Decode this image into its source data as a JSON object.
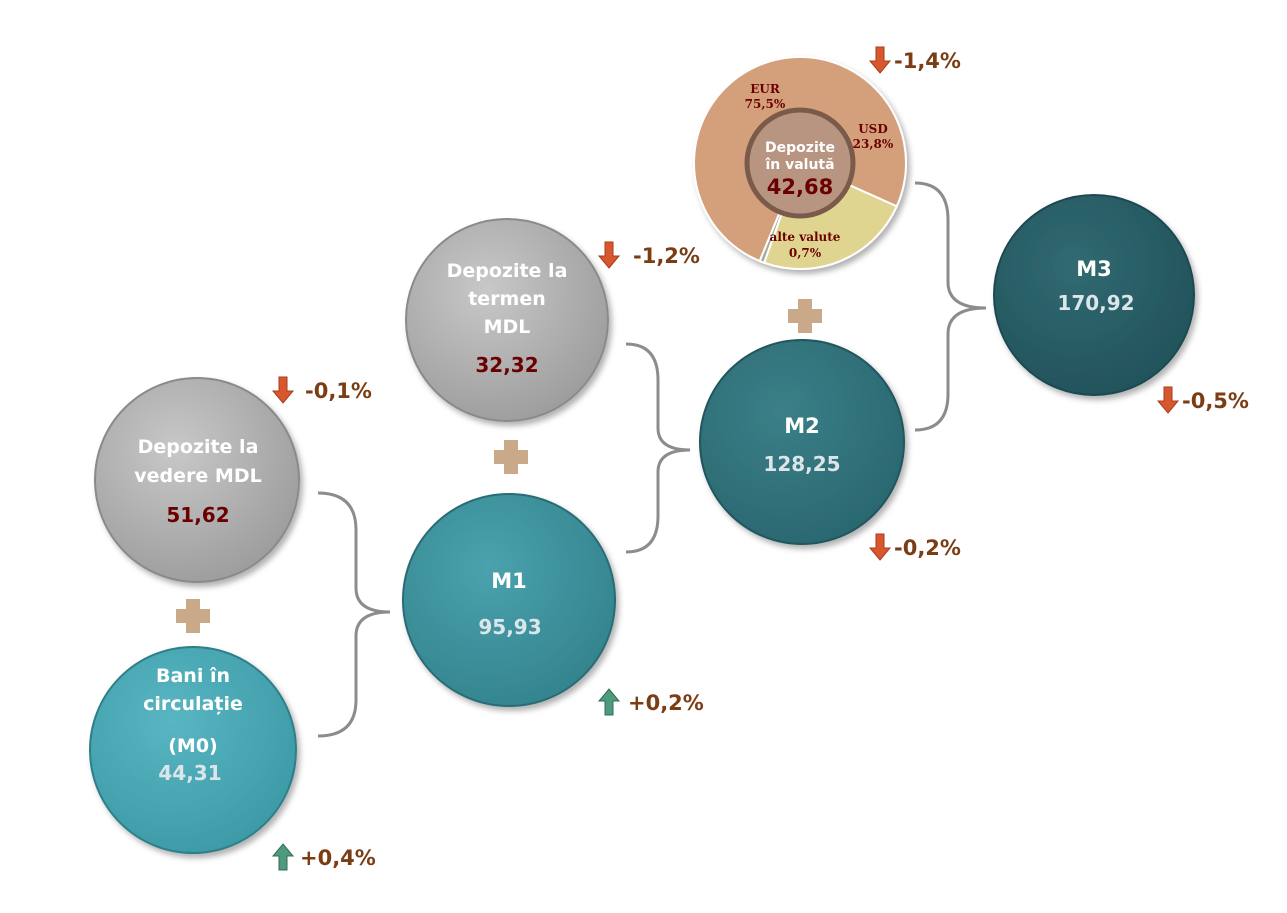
{
  "colors": {
    "gray_circle": "#a9a9a9",
    "teal_light": "#46a7b4",
    "teal_mid": "#3a8e99",
    "teal_dark": "#2e6e77",
    "teal_darker": "#265a62",
    "value_dark_red": "#6b0000",
    "value_light": "#dce6ea",
    "change_text": "#7a3d14",
    "arrow_down": "#d9572e",
    "arrow_up": "#4f9a7d",
    "plus": "#c9a989",
    "bracket": "#8c8c8c",
    "eur_slice": "#d4a07c",
    "usd_slice": "#dfd490",
    "other_slice": "#a8a898",
    "donut_center": "#b89580",
    "donut_ring": "#7a5a4a"
  },
  "nodes": {
    "m0": {
      "title_line1": "Bani în",
      "title_line2": "circulație",
      "title_line3": "(M0)",
      "value": "44,31",
      "change": "+0,4%",
      "direction": "up"
    },
    "vedere": {
      "title_line1": "Depozite la",
      "title_line2": "vedere MDL",
      "value": "51,62",
      "change": "-0,1%",
      "direction": "down"
    },
    "m1": {
      "title": "M1",
      "value": "95,93",
      "change": "+0,2%",
      "direction": "up"
    },
    "termen": {
      "title_line1": "Depozite la",
      "title_line2": "termen",
      "title_line3": "MDL",
      "value": "32,32",
      "change": "-1,2%",
      "direction": "down"
    },
    "m2": {
      "title": "M2",
      "value": "128,25",
      "change": "-0,2%",
      "direction": "down"
    },
    "valuta": {
      "title_line1": "Depozite",
      "title_line2": "în valută",
      "value": "42,68",
      "change": "-1,4%",
      "direction": "down"
    },
    "m3": {
      "title": "M3",
      "value": "170,92",
      "change": "-0,5%",
      "direction": "down"
    }
  },
  "chart_data": {
    "type": "pie",
    "categories": [
      "EUR",
      "USD",
      "alte valute"
    ],
    "values": [
      75.5,
      23.8,
      0.7
    ],
    "labels": [
      {
        "name": "EUR",
        "value": "75,5%"
      },
      {
        "name": "USD",
        "value": "23,8%"
      },
      {
        "name": "alte valute",
        "value": "0,7%"
      }
    ]
  }
}
